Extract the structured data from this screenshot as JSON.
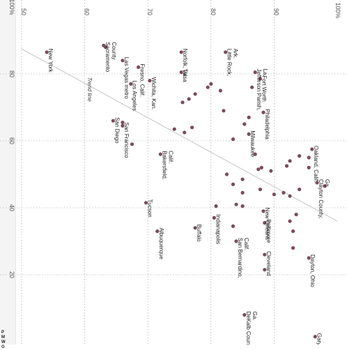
{
  "chart_data": {
    "type": "scatter",
    "title": "",
    "xlabel": "",
    "ylabel": "",
    "x_ticks": [
      "20",
      "40",
      "60",
      "80",
      "100%"
    ],
    "y_ticks": [
      "50",
      "60",
      "70",
      "80",
      "90",
      "100%"
    ],
    "xlim": [
      0,
      100
    ],
    "ylim": [
      50,
      100
    ],
    "grid": true,
    "dot_color": "#7b4a5c",
    "trend_line": {
      "label": "Trend line",
      "from": [
        36,
        100
      ],
      "to": [
        87.5,
        50
      ]
    },
    "legend_fragment": [
      "P",
      "M",
      "W",
      "G"
    ],
    "points": [
      {
        "x": 86.5,
        "y": 54.0,
        "label": "New York"
      },
      {
        "x": 88.5,
        "y": 63.0,
        "label": "Sacramento County"
      },
      {
        "x": 88.0,
        "y": 63.3,
        "label": ""
      },
      {
        "x": 84.0,
        "y": 66.0,
        "label": "Las Vegas metro"
      },
      {
        "x": 82.0,
        "y": 68.5,
        "label": "Fresno, Calif."
      },
      {
        "x": 77.0,
        "y": 67.3,
        "label": "Los Angeles"
      },
      {
        "x": 78.0,
        "y": 70.3,
        "label": "Wichita, Kan."
      },
      {
        "x": 66.0,
        "y": 64.5,
        "label": "San Diego"
      },
      {
        "x": 65.5,
        "y": 66.0,
        "label": ""
      },
      {
        "x": 64.5,
        "y": 66.0,
        "label": "San Francisco"
      },
      {
        "x": 59.0,
        "y": 67.5,
        "label": ""
      },
      {
        "x": 41.5,
        "y": 69.7,
        "label": "Tucson"
      },
      {
        "x": 56.0,
        "y": 72.0,
        "label": "Bakersfield, Calif."
      },
      {
        "x": 86.5,
        "y": 75.3,
        "label": "Norfolk, Va."
      },
      {
        "x": 80.5,
        "y": 75.3,
        "label": "Tulsa"
      },
      {
        "x": 63.5,
        "y": 74.2,
        "label": ""
      },
      {
        "x": 62.5,
        "y": 75.8,
        "label": ""
      },
      {
        "x": 64.0,
        "y": 77.0,
        "label": ""
      },
      {
        "x": 71.5,
        "y": 75.5,
        "label": ""
      },
      {
        "x": 72.5,
        "y": 76.5,
        "label": ""
      },
      {
        "x": 74.0,
        "y": 77.5,
        "label": ""
      },
      {
        "x": 76.0,
        "y": 79.5,
        "label": ""
      },
      {
        "x": 77.0,
        "y": 80.0,
        "label": ""
      },
      {
        "x": 75.0,
        "y": 81.5,
        "label": ""
      },
      {
        "x": 69.0,
        "y": 82.0,
        "label": ""
      },
      {
        "x": 33.0,
        "y": 71.5,
        "label": "Albuquerque"
      },
      {
        "x": 34.0,
        "y": 77.5,
        "label": "Buffalo"
      },
      {
        "x": 37.0,
        "y": 80.5,
        "label": "Indianapolis"
      },
      {
        "x": 40.5,
        "y": 80.8,
        "label": ""
      },
      {
        "x": 50.0,
        "y": 82.5,
        "label": ""
      },
      {
        "x": 47.0,
        "y": 83.5,
        "label": ""
      },
      {
        "x": 41.0,
        "y": 84.0,
        "label": ""
      },
      {
        "x": 40.5,
        "y": 85.0,
        "label": ""
      },
      {
        "x": 44.5,
        "y": 85.0,
        "label": ""
      },
      {
        "x": 48.5,
        "y": 85.0,
        "label": ""
      },
      {
        "x": 60.5,
        "y": 83.5,
        "label": ""
      },
      {
        "x": 65.0,
        "y": 85.3,
        "label": ""
      },
      {
        "x": 62.0,
        "y": 86.0,
        "label": "Milwaukee"
      },
      {
        "x": 67.0,
        "y": 86.0,
        "label": ""
      },
      {
        "x": 76.0,
        "y": 86.5,
        "label": ""
      },
      {
        "x": 86.5,
        "y": 82.3,
        "label": "Little Rock, Ark."
      },
      {
        "x": 80.5,
        "y": 87.0,
        "label": "Jefferson Parish, La."
      },
      {
        "x": 78.5,
        "y": 87.8,
        "label": "Fort Worth"
      },
      {
        "x": 68.5,
        "y": 88.3,
        "label": "Philadelphia"
      },
      {
        "x": 30.0,
        "y": 84.0,
        "label": "San Bernardino, Calif."
      },
      {
        "x": 34.5,
        "y": 83.5,
        "label": ""
      },
      {
        "x": 26.0,
        "y": 88.5,
        "label": "Cleveland"
      },
      {
        "x": 35.5,
        "y": 88.5,
        "label": "Baltimore"
      },
      {
        "x": 21.5,
        "y": 88.5,
        "label": ""
      },
      {
        "x": 8.0,
        "y": 85.3,
        "label": "DeKalb County, Ga."
      },
      {
        "x": 39.0,
        "y": 88.3,
        "label": "New Orleans"
      },
      {
        "x": 45.5,
        "y": 87.8,
        "label": ""
      },
      {
        "x": 51.5,
        "y": 87.5,
        "label": ""
      },
      {
        "x": 52.0,
        "y": 88.0,
        "label": ""
      },
      {
        "x": 56.0,
        "y": 87.0,
        "label": ""
      },
      {
        "x": 51.0,
        "y": 89.5,
        "label": ""
      },
      {
        "x": 44.0,
        "y": 90.0,
        "label": ""
      },
      {
        "x": 44.5,
        "y": 91.5,
        "label": ""
      },
      {
        "x": 43.5,
        "y": 92.5,
        "label": ""
      },
      {
        "x": 52.5,
        "y": 92.0,
        "label": ""
      },
      {
        "x": 54.0,
        "y": 92.5,
        "label": ""
      },
      {
        "x": 55.5,
        "y": 94.0,
        "label": ""
      },
      {
        "x": 36.0,
        "y": 92.5,
        "label": ""
      },
      {
        "x": 33.0,
        "y": 93.0,
        "label": ""
      },
      {
        "x": 28.0,
        "y": 93.0,
        "label": ""
      },
      {
        "x": 38.0,
        "y": 93.5,
        "label": ""
      },
      {
        "x": 55.0,
        "y": 95.5,
        "label": ""
      },
      {
        "x": 52.0,
        "y": 95.5,
        "label": ""
      },
      {
        "x": 57.5,
        "y": 96.0,
        "label": "Oakland, Calif."
      },
      {
        "x": 45.5,
        "y": 94.0,
        "label": ""
      },
      {
        "x": 25.0,
        "y": 95.5,
        "label": "Dayton, Ohio"
      },
      {
        "x": 47.5,
        "y": 96.8,
        "label": "Clayton County, Ga."
      },
      {
        "x": 46.5,
        "y": 98.0,
        "label": ""
      },
      {
        "x": 1.5,
        "y": 96.5,
        "label": "Gary, Ind."
      }
    ]
  }
}
